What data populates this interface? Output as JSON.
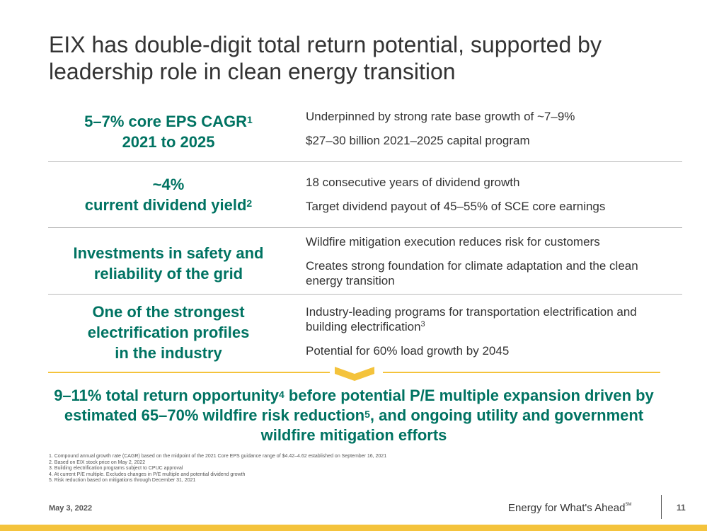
{
  "slide": {
    "title": "EIX has double-digit total return potential, supported by leadership role in clean energy transition",
    "rows": [
      {
        "left_lines": [
          "5–7% core EPS CAGR",
          "2021 to 2025"
        ],
        "left_sup": "1",
        "right_items": [
          "Underpinned by strong rate base growth of ~7–9%",
          "$27–30 billion 2021–2025 capital program"
        ]
      },
      {
        "left_lines": [
          "~4%",
          "current dividend yield"
        ],
        "left_sup": "2",
        "right_items": [
          "18 consecutive years of dividend growth",
          "Target dividend payout of 45–55% of SCE core earnings"
        ]
      },
      {
        "left_lines": [
          "Investments in safety and",
          "reliability of the grid"
        ],
        "right_items": [
          "Wildfire mitigation execution reduces risk for customers",
          "Creates strong foundation for climate adaptation and the clean energy transition"
        ]
      },
      {
        "left_lines": [
          "One of the strongest",
          "electrification profiles",
          "in the industry"
        ],
        "right_items": [
          "Industry-leading programs for transportation electrification and building electrification",
          "Potential for 60% load growth by 2045"
        ],
        "right_sup": "3"
      }
    ],
    "conclusion": {
      "part1": "9–11% total return opportunity",
      "sup1": "4",
      "part2": " before potential P/E multiple expansion driven by estimated 65–70% wildfire risk reduction",
      "sup2": "5",
      "part3": ", and ongoing utility and government wildfire mitigation efforts"
    },
    "footnotes": [
      "1. Compound annual growth rate (CAGR) based on the midpoint of the 2021 Core EPS guidance range of $4.42–4.62 established on September 16, 2021",
      "2. Based on EIX stock price on May 2, 2022",
      "3. Building electrification programs subject to CPUC approval",
      "4. At current P/E multiple. Excludes changes in P/E multiple and potential dividend growth",
      "5. Risk reduction based on mitigations through December 31, 2021"
    ],
    "footer": {
      "date": "May 3, 2022",
      "tagline": "Energy for What's Ahead",
      "tagline_mark": "SM",
      "page_number": "11"
    },
    "colors": {
      "accent_green": "#007362",
      "gold": "#f4c33c",
      "text_gray": "#333333",
      "divider_gray": "#b9b9b9"
    }
  }
}
